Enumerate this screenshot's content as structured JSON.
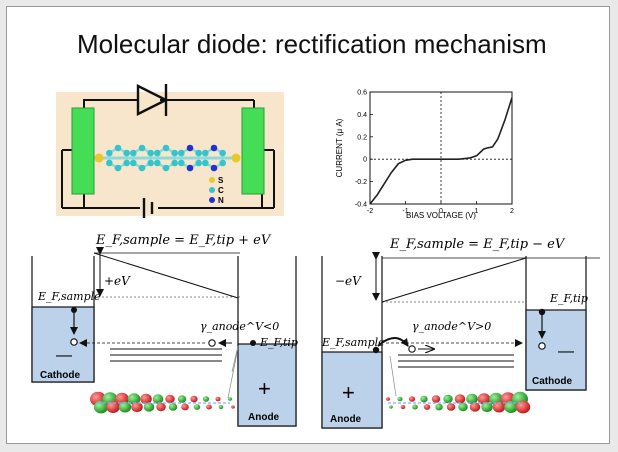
{
  "slide": {
    "title": "Molecular diode: rectification mechanism"
  },
  "molecule_legend": [
    "S",
    "C",
    "N"
  ],
  "iv_chart": {
    "chart_data": {
      "type": "line",
      "xlabel": "BIAS VOLTAGE (V)",
      "ylabel": "CURRENT (μ A)",
      "xlim": [
        -2,
        2
      ],
      "ylim": [
        -0.4,
        0.6
      ],
      "x_ticks": [
        "-2",
        "-1",
        "0",
        "1",
        "2"
      ],
      "y_ticks": [
        "-0.4",
        "-0.2",
        "0",
        "0.2",
        "0.4",
        "0.6"
      ],
      "series": [
        {
          "x": [
            -2.0,
            -1.8,
            -1.6,
            -1.4,
            -1.2,
            -1.0,
            -0.8,
            -0.5,
            0.0,
            0.5,
            0.8,
            1.0,
            1.1,
            1.2,
            1.3,
            1.45,
            1.6,
            1.8,
            2.0
          ],
          "y": [
            -0.4,
            -0.32,
            -0.22,
            -0.12,
            -0.04,
            -0.01,
            0.0,
            0.0,
            0.0,
            0.0,
            0.01,
            0.03,
            0.06,
            0.09,
            0.1,
            0.11,
            0.18,
            0.35,
            0.55
          ]
        }
      ]
    }
  },
  "left_diagram": {
    "equation": "E_F,sample = E_F,tip + eV",
    "ev_label": "+eV",
    "ef_sample": "E_F,sample",
    "ef_tip": "E_F,tip",
    "gamma": "γ_anode^V<0",
    "cathode_label": "Cathode",
    "anode_label": "Anode",
    "minus_sign": "—",
    "plus_sign": "+"
  },
  "right_diagram": {
    "equation": "E_F,sample = E_F,tip − eV",
    "ev_label": "−eV",
    "ef_sample": "E_F,sample",
    "ef_tip": "E_F,tip",
    "gamma": "γ_anode^V>0",
    "cathode_label": "Cathode",
    "anode_label": "Anode",
    "minus_sign": "—",
    "plus_sign": "+"
  },
  "colors": {
    "electrode_fill": "#bcd2ea",
    "molecule_panel": "#f7e6cc",
    "electrode_green": "#44dd55",
    "carbon": "#33c4cc",
    "sulfur": "#e8c82a",
    "nitrogen": "#2233cc"
  }
}
